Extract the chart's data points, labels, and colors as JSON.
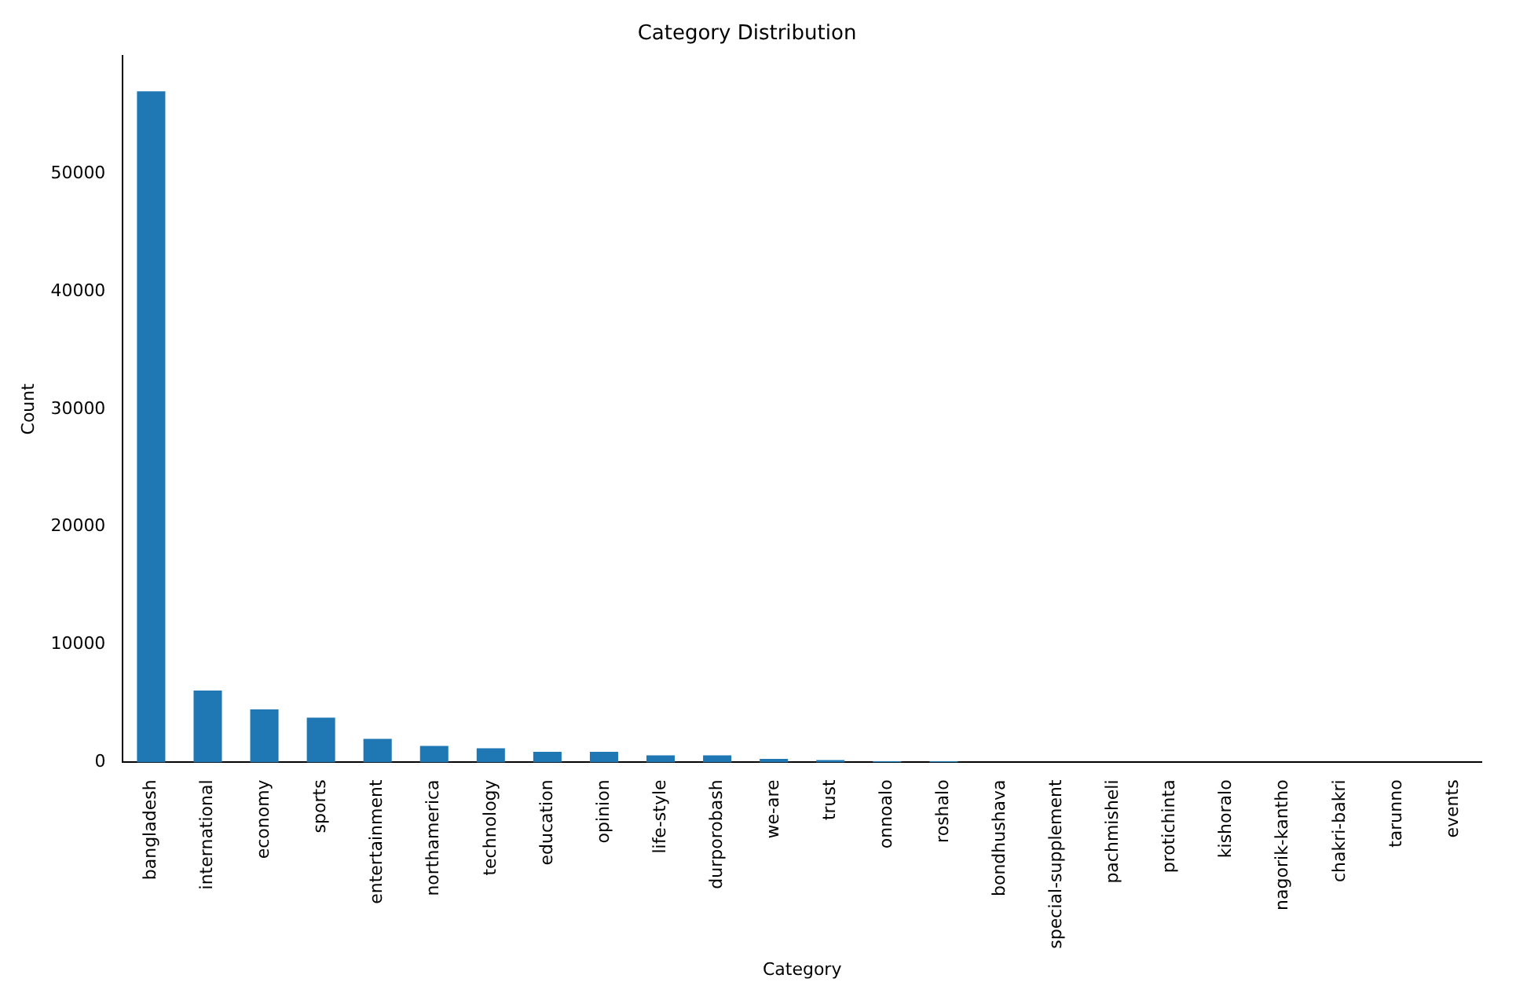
{
  "chart_data": {
    "type": "bar",
    "title": "Category Distribution",
    "xlabel": "Category",
    "ylabel": "Count",
    "categories": [
      "bangladesh",
      "international",
      "economy",
      "sports",
      "entertainment",
      "northamerica",
      "technology",
      "education",
      "opinion",
      "life-style",
      "durporobash",
      "we-are",
      "trust",
      "onnoalo",
      "roshalo",
      "bondhushava",
      "special-supplement",
      "pachmisheli",
      "protichinta",
      "kishoralo",
      "nagorik-kantho",
      "chakri-bakri",
      "tarunno",
      "events"
    ],
    "values": [
      57000,
      6100,
      4500,
      3800,
      2000,
      1400,
      1200,
      900,
      900,
      600,
      600,
      300,
      200,
      100,
      100,
      0,
      0,
      0,
      0,
      0,
      0,
      0,
      0,
      0
    ],
    "color": "#1f77b4",
    "ylim": [
      0,
      60000
    ],
    "yticks": [
      0,
      10000,
      20000,
      30000,
      40000,
      50000
    ],
    "grid": false,
    "legend": false
  }
}
